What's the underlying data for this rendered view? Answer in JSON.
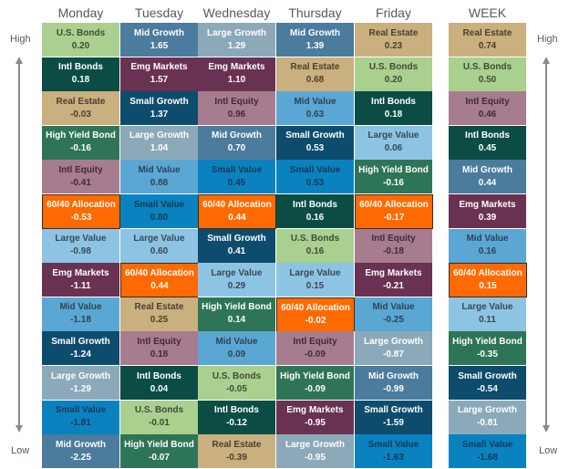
{
  "axis": {
    "high": "High",
    "low": "Low"
  },
  "columns": [
    {
      "label": "Monday",
      "cells": [
        {
          "name": "U.S. Bonds",
          "value": "0.20"
        },
        {
          "name": "Intl Bonds",
          "value": "0.18"
        },
        {
          "name": "Real Estate",
          "value": "-0.03"
        },
        {
          "name": "High Yield Bond",
          "value": "-0.16"
        },
        {
          "name": "Intl Equity",
          "value": "-0.41"
        },
        {
          "name": "60/40 Allocation",
          "value": "-0.53"
        },
        {
          "name": "Large Value",
          "value": "-0.98"
        },
        {
          "name": "Emg Markets",
          "value": "-1.11"
        },
        {
          "name": "Mid Value",
          "value": "-1.18"
        },
        {
          "name": "Small Growth",
          "value": "-1.24"
        },
        {
          "name": "Large Growth",
          "value": "-1.29"
        },
        {
          "name": "Small Value",
          "value": "-1.81"
        },
        {
          "name": "Mid Growth",
          "value": "-2.25"
        }
      ]
    },
    {
      "label": "Tuesday",
      "cells": [
        {
          "name": "Mid Growth",
          "value": "1.65"
        },
        {
          "name": "Emg Markets",
          "value": "1.57"
        },
        {
          "name": "Small Growth",
          "value": "1.37"
        },
        {
          "name": "Large Growth",
          "value": "1.04"
        },
        {
          "name": "Mid Value",
          "value": "0.88"
        },
        {
          "name": "Small Value",
          "value": "0.80"
        },
        {
          "name": "Large Value",
          "value": "0.60"
        },
        {
          "name": "60/40 Allocation",
          "value": "0.44"
        },
        {
          "name": "Real Estate",
          "value": "0.25"
        },
        {
          "name": "Intl Equity",
          "value": "0.18"
        },
        {
          "name": "Intl Bonds",
          "value": "0.04"
        },
        {
          "name": "U.S. Bonds",
          "value": "-0.01"
        },
        {
          "name": "High Yield Bond",
          "value": "-0.07"
        }
      ]
    },
    {
      "label": "Wednesday",
      "cells": [
        {
          "name": "Large Growth",
          "value": "1.29"
        },
        {
          "name": "Emg Markets",
          "value": "1.10"
        },
        {
          "name": "Intl Equity",
          "value": "0.96"
        },
        {
          "name": "Mid Growth",
          "value": "0.70"
        },
        {
          "name": "Small Value",
          "value": "0.45"
        },
        {
          "name": "60/40 Allocation",
          "value": "0.44"
        },
        {
          "name": "Small Growth",
          "value": "0.41"
        },
        {
          "name": "Large Value",
          "value": "0.29"
        },
        {
          "name": "High Yield Bond",
          "value": "0.14"
        },
        {
          "name": "Mid Value",
          "value": "0.09"
        },
        {
          "name": "U.S. Bonds",
          "value": "-0.05"
        },
        {
          "name": "Intl Bonds",
          "value": "-0.12"
        },
        {
          "name": "Real Estate",
          "value": "-0.39"
        }
      ]
    },
    {
      "label": "Thursday",
      "cells": [
        {
          "name": "Mid Growth",
          "value": "1.39"
        },
        {
          "name": "Real Estate",
          "value": "0.68"
        },
        {
          "name": "Mid Value",
          "value": "0.63"
        },
        {
          "name": "Small Growth",
          "value": "0.53"
        },
        {
          "name": "Small Value",
          "value": "0.53"
        },
        {
          "name": "Intl Bonds",
          "value": "0.16"
        },
        {
          "name": "U.S. Bonds",
          "value": "0.16"
        },
        {
          "name": "Large Value",
          "value": "0.15"
        },
        {
          "name": "60/40 Allocation",
          "value": "-0.02"
        },
        {
          "name": "Intl Equity",
          "value": "-0.09"
        },
        {
          "name": "High Yield Bond",
          "value": "-0.09"
        },
        {
          "name": "Emg Markets",
          "value": "-0.95"
        },
        {
          "name": "Large Growth",
          "value": "-0.95"
        }
      ]
    },
    {
      "label": "Friday",
      "cells": [
        {
          "name": "Real Estate",
          "value": "0.23"
        },
        {
          "name": "U.S. Bonds",
          "value": "0.20"
        },
        {
          "name": "Intl Bonds",
          "value": "0.18"
        },
        {
          "name": "Large Value",
          "value": "0.06"
        },
        {
          "name": "High Yield Bond",
          "value": "-0.16"
        },
        {
          "name": "60/40 Allocation",
          "value": "-0.17"
        },
        {
          "name": "Intl Equity",
          "value": "-0.18"
        },
        {
          "name": "Emg Markets",
          "value": "-0.21"
        },
        {
          "name": "Mid Value",
          "value": "-0.25"
        },
        {
          "name": "Large Growth",
          "value": "-0.87"
        },
        {
          "name": "Mid Growth",
          "value": "-0.99"
        },
        {
          "name": "Small Growth",
          "value": "-1.59"
        },
        {
          "name": "Small Value",
          "value": "-1.63"
        }
      ]
    },
    {
      "label": "WEEK",
      "cells": [
        {
          "name": "Real Estate",
          "value": "0.74"
        },
        {
          "name": "U.S. Bonds",
          "value": "0.50"
        },
        {
          "name": "Intl Equity",
          "value": "0.46"
        },
        {
          "name": "Intl Bonds",
          "value": "0.45"
        },
        {
          "name": "Mid Growth",
          "value": "0.44"
        },
        {
          "name": "Emg Markets",
          "value": "0.39"
        },
        {
          "name": "Mid Value",
          "value": "0.16"
        },
        {
          "name": "60/40 Allocation",
          "value": "0.15"
        },
        {
          "name": "Large Value",
          "value": "0.11"
        },
        {
          "name": "High Yield Bond",
          "value": "-0.35"
        },
        {
          "name": "Small Growth",
          "value": "-0.54"
        },
        {
          "name": "Large Growth",
          "value": "-0.81"
        },
        {
          "name": "Small Value",
          "value": "-1.68"
        }
      ]
    }
  ],
  "asset_colors": {
    "U.S. Bonds": {
      "bg": "#a9d08e",
      "fg": "#3f4a3a"
    },
    "Intl Bonds": {
      "bg": "#0b4d45",
      "fg": "#ffffff"
    },
    "Real Estate": {
      "bg": "#c9b07e",
      "fg": "#4a3f30"
    },
    "High Yield Bond": {
      "bg": "#2e7557",
      "fg": "#ffffff"
    },
    "Intl Equity": {
      "bg": "#a87c8f",
      "fg": "#3e2c35"
    },
    "60/40 Allocation": {
      "bg": "#ff6a00",
      "fg": "#ffffff"
    },
    "Large Value": {
      "bg": "#8ec4e3",
      "fg": "#374855"
    },
    "Emg Markets": {
      "bg": "#6a3252",
      "fg": "#ffffff"
    },
    "Mid Value": {
      "bg": "#5ba7d3",
      "fg": "#2c4354"
    },
    "Small Growth": {
      "bg": "#0e4c6e",
      "fg": "#ffffff"
    },
    "Large Growth": {
      "bg": "#8ca9b9",
      "fg": "#ffffff"
    },
    "Small Value": {
      "bg": "#0a82c0",
      "fg": "#153a55"
    },
    "Mid Growth": {
      "bg": "#4b7b9d",
      "fg": "#ffffff"
    }
  }
}
